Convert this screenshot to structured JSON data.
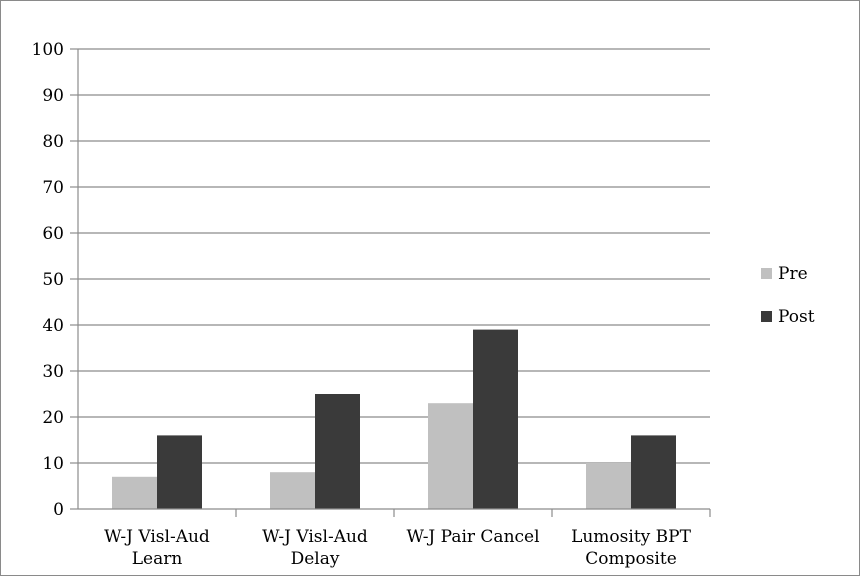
{
  "chart_data": {
    "type": "bar",
    "categories": [
      [
        "W-J Visl-Aud",
        "Learn"
      ],
      [
        "W-J Visl-Aud",
        "Delay"
      ],
      [
        "W-J Pair Cancel"
      ],
      [
        "Lumosity BPT",
        "Composite"
      ]
    ],
    "series": [
      {
        "name": "Pre",
        "values": [
          7,
          8,
          23,
          10
        ],
        "color": "#c0c0c0"
      },
      {
        "name": "Post",
        "values": [
          16,
          25,
          39,
          16
        ],
        "color": "#3a3a3a"
      }
    ],
    "ylim": [
      0,
      100
    ],
    "yticks": [
      0,
      10,
      20,
      30,
      40,
      50,
      60,
      70,
      80,
      90,
      100
    ],
    "grid": true,
    "legend_position": "right",
    "title": "",
    "xlabel": "",
    "ylabel": ""
  }
}
